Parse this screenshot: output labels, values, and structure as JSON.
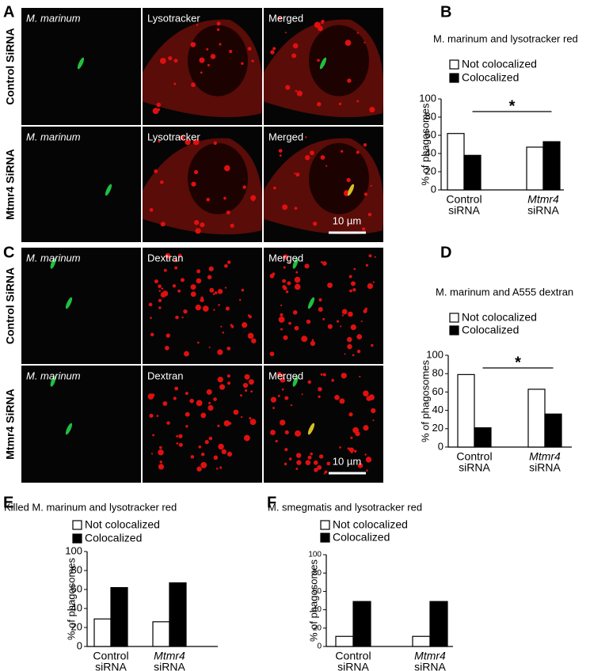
{
  "figure": {
    "panel_letters": [
      "A",
      "B",
      "C",
      "D",
      "E",
      "F"
    ],
    "panel_a": {
      "row_labels": [
        "Control SiRNA",
        "Mtmr4 SiRNA"
      ],
      "column_labels": [
        [
          "M. marinum",
          "Lysotracker",
          "Merged"
        ],
        [
          "M. marinum",
          "Lysotracker",
          "Merged"
        ]
      ],
      "scale_bar": "10 µm"
    },
    "panel_c": {
      "row_labels": [
        "Control SiRNA",
        "Mtmr4 SiRNA"
      ],
      "column_labels": [
        [
          "M. marinum",
          "Dextran",
          "Merged"
        ],
        [
          "M. marinum",
          "Dextran",
          "Merged"
        ]
      ],
      "scale_bar": "10 µm"
    }
  },
  "chart_data": [
    {
      "type": "bar",
      "title": "M. marinum and lysotracker red",
      "categories": [
        [
          "Control",
          "siRNA"
        ],
        [
          "Mtmr4",
          "siRNA"
        ]
      ],
      "series": [
        {
          "name": "Not colocalized",
          "color": "#ffffff",
          "values": [
            62,
            47
          ]
        },
        {
          "name": "Colocalized",
          "color": "#000000",
          "values": [
            38,
            53
          ]
        }
      ],
      "ylabel": "% of phagosomes",
      "ylim": [
        0,
        100
      ],
      "yticks": [
        0,
        20,
        40,
        60,
        80,
        100
      ],
      "annotation": "*"
    },
    {
      "type": "bar",
      "title": "M. marinum and A555 dextran",
      "categories": [
        [
          "Control",
          "siRNA"
        ],
        [
          "Mtmr4",
          "siRNA"
        ]
      ],
      "series": [
        {
          "name": "Not colocalized",
          "color": "#ffffff",
          "values": [
            79,
            63
          ]
        },
        {
          "name": "Colocalized",
          "color": "#000000",
          "values": [
            21,
            36
          ]
        }
      ],
      "ylabel": "% of phagosomes",
      "ylim": [
        0,
        100
      ],
      "yticks": [
        0,
        20,
        40,
        60,
        80,
        100
      ],
      "annotation": "*"
    },
    {
      "type": "bar",
      "title": "Killed M. marinum and lysotracker red",
      "categories": [
        [
          "Control",
          "siRNA"
        ],
        [
          "Mtmr4",
          "siRNA"
        ]
      ],
      "series": [
        {
          "name": "Not colocalized",
          "color": "#ffffff",
          "values": [
            29,
            26
          ]
        },
        {
          "name": "Colocalized",
          "color": "#000000",
          "values": [
            62,
            67
          ]
        }
      ],
      "ylabel": "% of phagosomes",
      "ylim": [
        0,
        100
      ],
      "yticks": [
        0,
        20,
        40,
        60,
        80,
        100
      ]
    },
    {
      "type": "bar",
      "title": "M. smegmatis and lysotracker red",
      "categories": [
        [
          "Control",
          "siRNA"
        ],
        [
          "Mtmr4",
          "siRNA"
        ]
      ],
      "series": [
        {
          "name": "Not colocalized",
          "color": "#ffffff",
          "values": [
            11,
            11
          ]
        },
        {
          "name": "Colocalized",
          "color": "#000000",
          "values": [
            49,
            49
          ]
        }
      ],
      "ylabel": "% of phagosomes",
      "ylim": [
        0,
        100
      ],
      "yticks": [
        0,
        20,
        40,
        60,
        80,
        100
      ]
    }
  ]
}
